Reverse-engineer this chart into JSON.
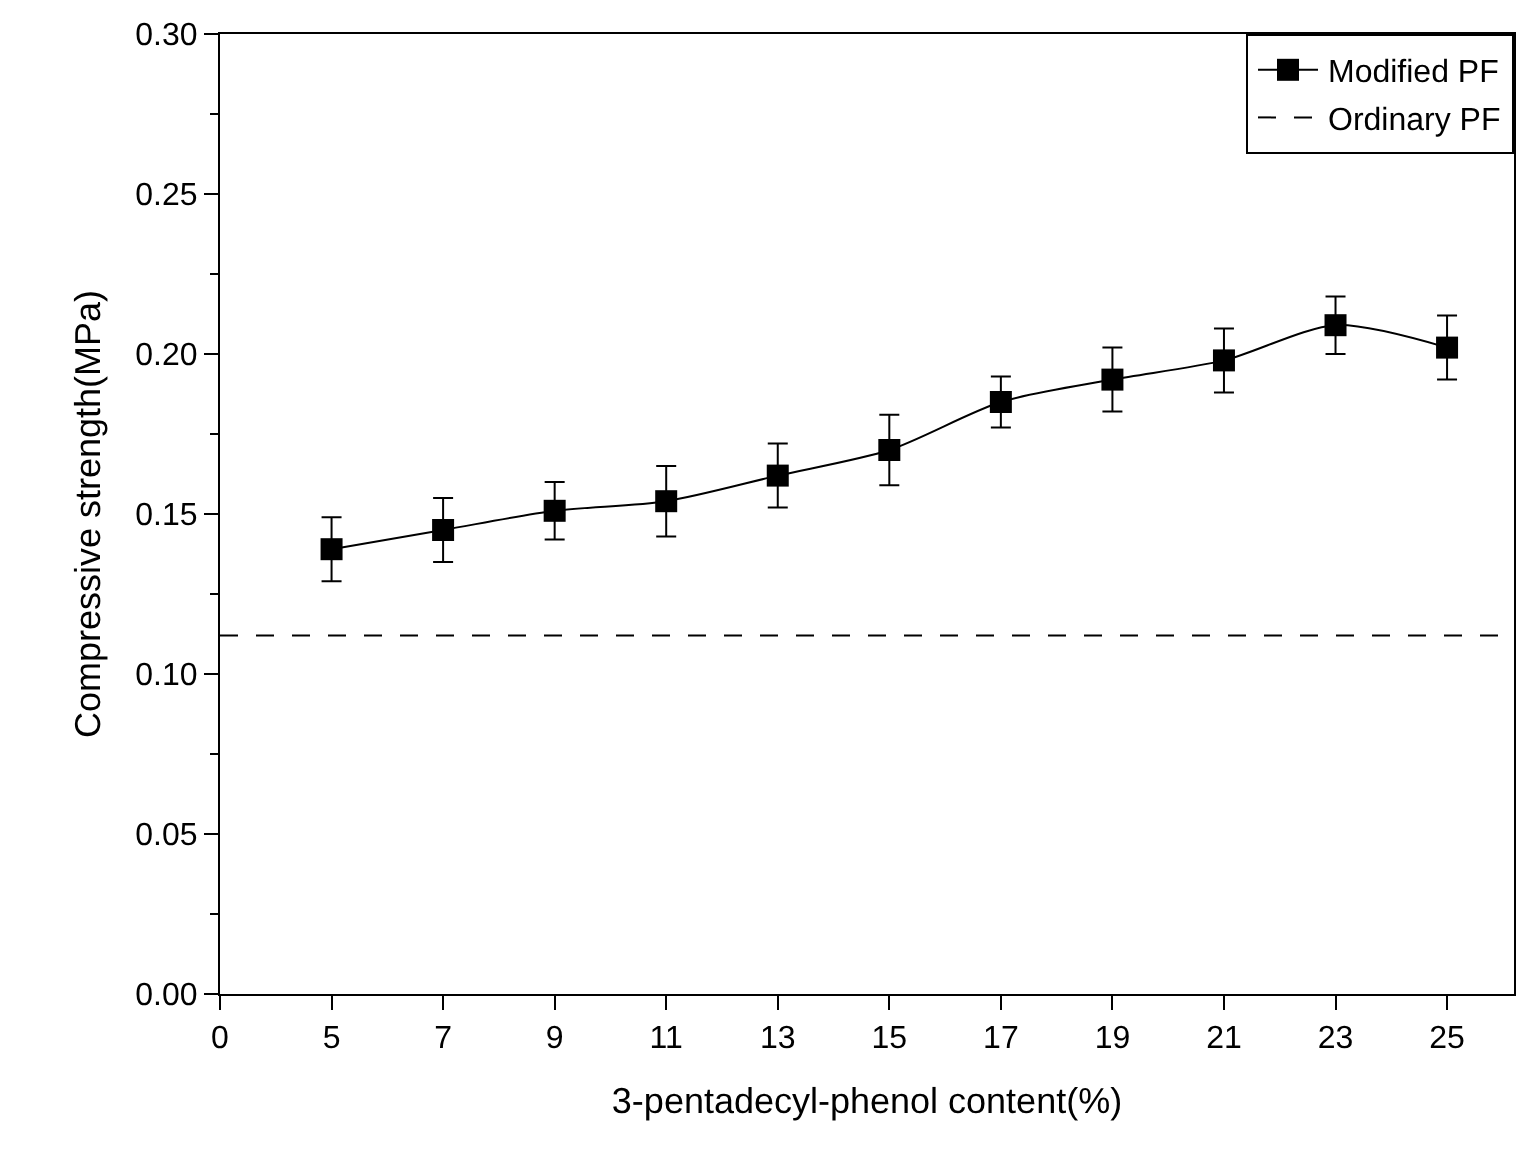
{
  "chart_data": {
    "type": "line",
    "xlabel": "3-pentadecyl-phenol content(%)",
    "ylabel": "Compressive strength(MPa)",
    "categories": [
      "0",
      "5",
      "7",
      "9",
      "11",
      "13",
      "15",
      "17",
      "19",
      "21",
      "23",
      "25"
    ],
    "series": [
      {
        "name": "Modified PF",
        "color": "#000000",
        "values": [
          null,
          0.139,
          0.145,
          0.151,
          0.154,
          0.162,
          0.17,
          0.185,
          0.192,
          0.198,
          0.209,
          0.202
        ],
        "errors": [
          null,
          0.01,
          0.01,
          0.009,
          0.011,
          0.01,
          0.011,
          0.008,
          0.01,
          0.01,
          0.009,
          0.01
        ]
      }
    ],
    "ylim": [
      0,
      0.3
    ],
    "yticks": [
      {
        "value": 0,
        "label": "0.00"
      },
      {
        "value": 0.05,
        "label": "0.05"
      },
      {
        "value": 0.1,
        "label": "0.10"
      },
      {
        "value": 0.15,
        "label": "0.15"
      },
      {
        "value": 0.2,
        "label": "0.20"
      },
      {
        "value": 0.25,
        "label": "0.25"
      },
      {
        "value": 0.3,
        "label": "0.30"
      }
    ],
    "ref_lines": [
      {
        "axis": "y",
        "value": 0.112,
        "label": "Ordinary PF",
        "color": "#000000",
        "line_style": "dashed"
      }
    ],
    "marker": "square",
    "line_style": "solid",
    "legend": "top right",
    "grid": false
  }
}
